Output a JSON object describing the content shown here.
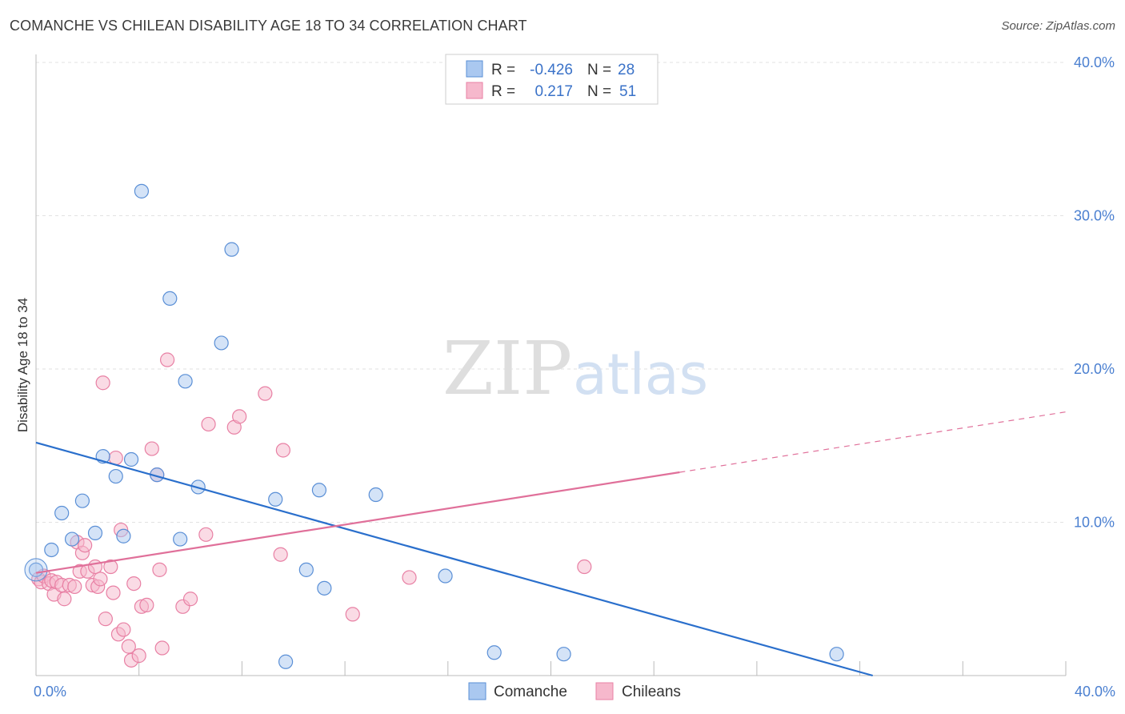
{
  "title": "COMANCHE VS CHILEAN DISABILITY AGE 18 TO 34 CORRELATION CHART",
  "source": "Source: ZipAtlas.com",
  "watermark": {
    "zip": "ZIP",
    "atlas": "atlas"
  },
  "colors": {
    "comanche_fill": "#aac8f0",
    "comanche_stroke": "#5a8fd6",
    "comanche_line": "#2a6fcc",
    "chileans_fill": "#f6b8cc",
    "chileans_stroke": "#e880a4",
    "chileans_line": "#e0709a",
    "axis_label": "#4a7fd0"
  },
  "legend": {
    "rows": [
      {
        "r_label": "R =",
        "r_value": "-0.426",
        "n_label": "N =",
        "n_value": "28"
      },
      {
        "r_label": "R =",
        "r_value": "0.217",
        "n_label": "N =",
        "n_value": "51"
      }
    ]
  },
  "chart_data": {
    "type": "scatter",
    "title": "COMANCHE VS CHILEAN DISABILITY AGE 18 TO 34 CORRELATION CHART",
    "ylabel": "Disability Age 18 to 34",
    "xlabel": "",
    "xlim": [
      0,
      40
    ],
    "ylim": [
      0,
      40
    ],
    "x_tick_labels": [
      "0.0%",
      "40.0%"
    ],
    "y_ticks": [
      {
        "value": 10,
        "label": "10.0%"
      },
      {
        "value": 20,
        "label": "20.0%"
      },
      {
        "value": 30,
        "label": "30.0%"
      },
      {
        "value": 40,
        "label": "40.0%"
      }
    ],
    "grid": true,
    "series": [
      {
        "name": "Comanche",
        "r": -0.426,
        "n": 28,
        "trend": {
          "x0": 0,
          "y0": 15.2,
          "x1": 32.5,
          "y1": 0.0,
          "solid_to": 32.5
        },
        "points": [
          [
            0.0,
            6.9
          ],
          [
            0.6,
            8.2
          ],
          [
            1.0,
            10.6
          ],
          [
            1.4,
            8.9
          ],
          [
            1.8,
            11.4
          ],
          [
            2.3,
            9.3
          ],
          [
            2.6,
            14.3
          ],
          [
            3.1,
            13.0
          ],
          [
            3.4,
            9.1
          ],
          [
            3.7,
            14.1
          ],
          [
            4.1,
            31.6
          ],
          [
            4.7,
            13.1
          ],
          [
            5.2,
            24.6
          ],
          [
            5.6,
            8.9
          ],
          [
            5.8,
            19.2
          ],
          [
            6.3,
            12.3
          ],
          [
            7.2,
            21.7
          ],
          [
            7.6,
            27.8
          ],
          [
            9.3,
            11.5
          ],
          [
            9.7,
            0.9
          ],
          [
            10.5,
            6.9
          ],
          [
            11.0,
            12.1
          ],
          [
            11.2,
            5.7
          ],
          [
            13.2,
            11.8
          ],
          [
            15.9,
            6.5
          ],
          [
            17.8,
            1.5
          ],
          [
            20.5,
            1.4
          ],
          [
            31.1,
            1.4
          ]
        ]
      },
      {
        "name": "Chileans",
        "r": 0.217,
        "n": 51,
        "trend": {
          "x0": 0,
          "y0": 6.7,
          "x1": 40,
          "y1": 17.2,
          "solid_to": 25.0
        },
        "points": [
          [
            0.1,
            6.3
          ],
          [
            0.2,
            6.1
          ],
          [
            0.3,
            6.5
          ],
          [
            0.5,
            6.0
          ],
          [
            0.6,
            6.2
          ],
          [
            0.7,
            5.3
          ],
          [
            0.8,
            6.1
          ],
          [
            1.0,
            5.9
          ],
          [
            1.1,
            5.0
          ],
          [
            1.3,
            5.9
          ],
          [
            1.5,
            5.8
          ],
          [
            1.6,
            8.7
          ],
          [
            1.7,
            6.8
          ],
          [
            1.8,
            8.0
          ],
          [
            1.9,
            8.5
          ],
          [
            2.0,
            6.8
          ],
          [
            2.2,
            5.9
          ],
          [
            2.3,
            7.1
          ],
          [
            2.4,
            5.8
          ],
          [
            2.5,
            6.3
          ],
          [
            2.6,
            19.1
          ],
          [
            2.7,
            3.7
          ],
          [
            2.9,
            7.1
          ],
          [
            3.0,
            5.4
          ],
          [
            3.1,
            14.2
          ],
          [
            3.2,
            2.7
          ],
          [
            3.3,
            9.5
          ],
          [
            3.4,
            3.0
          ],
          [
            3.6,
            1.9
          ],
          [
            3.7,
            1.0
          ],
          [
            3.8,
            6.0
          ],
          [
            4.0,
            1.3
          ],
          [
            4.1,
            4.5
          ],
          [
            4.3,
            4.6
          ],
          [
            4.5,
            14.8
          ],
          [
            4.7,
            13.1
          ],
          [
            4.8,
            6.9
          ],
          [
            4.9,
            1.8
          ],
          [
            5.1,
            20.6
          ],
          [
            5.7,
            4.5
          ],
          [
            6.0,
            5.0
          ],
          [
            6.6,
            9.2
          ],
          [
            6.7,
            16.4
          ],
          [
            7.7,
            16.2
          ],
          [
            7.9,
            16.9
          ],
          [
            8.9,
            18.4
          ],
          [
            9.5,
            7.9
          ],
          [
            9.6,
            14.7
          ],
          [
            12.3,
            4.0
          ],
          [
            14.5,
            6.4
          ],
          [
            21.3,
            7.1
          ]
        ]
      }
    ]
  }
}
